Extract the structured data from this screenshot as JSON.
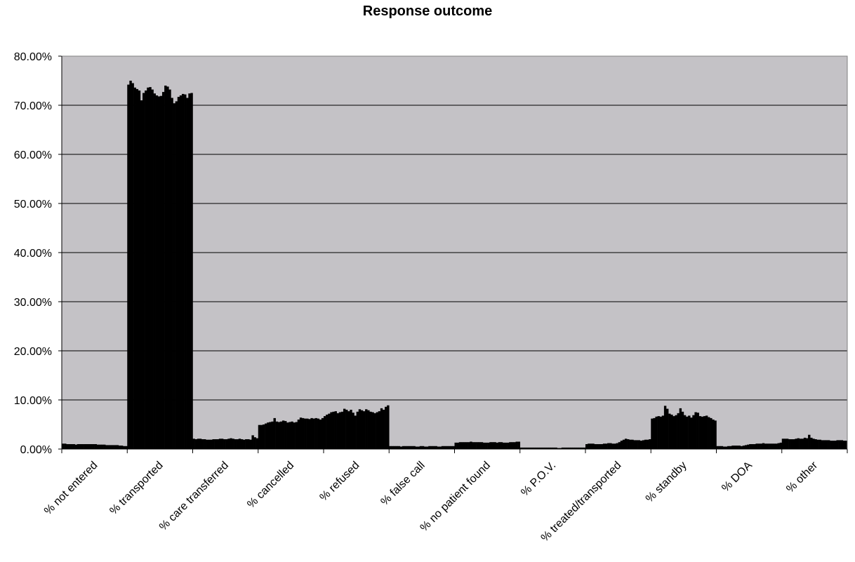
{
  "chart_data": {
    "type": "bar",
    "title": "Response outcome",
    "categories": [
      "% not entered",
      "% transported",
      "% care transferred",
      "% cancelled",
      "% refused",
      "% false call",
      "% no patient found",
      "% P.O.V.",
      "% treated/transported",
      "% standby",
      "% DOA",
      "% other"
    ],
    "values": [
      [
        1.1,
        1.1,
        1.0,
        1.0,
        1.0,
        1.0,
        0.9,
        1.0,
        1.0,
        1.0,
        1.0,
        1.0,
        1.0,
        1.0,
        1.0,
        1.0,
        0.9,
        0.9,
        0.9,
        0.9,
        0.8,
        0.8,
        0.8,
        0.8,
        0.8,
        0.8,
        0.7,
        0.7,
        0.6,
        0.6
      ],
      [
        74.2,
        75.0,
        74.5,
        73.6,
        73.3,
        73.0,
        71.0,
        72.5,
        73.0,
        73.6,
        73.7,
        73.2,
        72.4,
        72.0,
        71.8,
        71.9,
        72.7,
        74.0,
        73.8,
        73.2,
        71.5,
        70.4,
        70.8,
        71.7,
        72.0,
        72.3,
        72.2,
        71.5,
        72.4,
        72.5
      ],
      [
        2.1,
        2.0,
        2.1,
        2.1,
        2.0,
        2.0,
        1.9,
        1.9,
        1.9,
        2.0,
        2.0,
        2.0,
        2.1,
        2.1,
        2.0,
        2.0,
        2.1,
        2.2,
        2.1,
        2.0,
        2.0,
        2.1,
        2.0,
        1.9,
        2.0,
        2.0,
        1.9,
        2.8,
        2.4,
        2.2
      ],
      [
        4.9,
        4.9,
        5.0,
        5.2,
        5.4,
        5.5,
        5.6,
        6.3,
        5.6,
        5.5,
        5.6,
        5.8,
        5.7,
        5.4,
        5.5,
        5.6,
        5.4,
        5.5,
        6.0,
        6.4,
        6.3,
        6.2,
        6.2,
        6.1,
        6.3,
        6.2,
        6.3,
        6.2,
        6.0,
        6.3
      ],
      [
        6.7,
        7.0,
        7.2,
        7.5,
        7.6,
        7.7,
        7.3,
        7.5,
        7.6,
        8.2,
        8.0,
        7.7,
        8.0,
        7.4,
        6.8,
        7.6,
        8.1,
        7.9,
        7.7,
        8.1,
        7.9,
        7.6,
        7.5,
        7.3,
        7.5,
        7.7,
        8.3,
        8.0,
        8.6,
        8.9
      ],
      [
        0.6,
        0.6,
        0.6,
        0.6,
        0.6,
        0.5,
        0.6,
        0.6,
        0.6,
        0.6,
        0.6,
        0.6,
        0.5,
        0.5,
        0.6,
        0.6,
        0.5,
        0.5,
        0.6,
        0.6,
        0.6,
        0.6,
        0.5,
        0.5,
        0.6,
        0.6,
        0.6,
        0.6,
        0.6,
        0.6
      ],
      [
        1.3,
        1.3,
        1.4,
        1.4,
        1.4,
        1.4,
        1.4,
        1.5,
        1.4,
        1.4,
        1.4,
        1.4,
        1.4,
        1.3,
        1.3,
        1.3,
        1.4,
        1.4,
        1.4,
        1.3,
        1.4,
        1.4,
        1.3,
        1.3,
        1.3,
        1.4,
        1.4,
        1.4,
        1.5,
        1.5
      ],
      [
        0.3,
        0.3,
        0.3,
        0.3,
        0.3,
        0.3,
        0.3,
        0.3,
        0.3,
        0.3,
        0.3,
        0.3,
        0.3,
        0.3,
        0.3,
        0.3,
        0.3,
        0.2,
        0.2,
        0.3,
        0.3,
        0.3,
        0.3,
        0.3,
        0.3,
        0.3,
        0.3,
        0.3,
        0.3,
        0.3
      ],
      [
        1.0,
        1.1,
        1.1,
        1.1,
        1.0,
        1.0,
        1.0,
        1.0,
        1.1,
        1.1,
        1.2,
        1.2,
        1.1,
        1.1,
        1.2,
        1.4,
        1.7,
        1.9,
        2.1,
        2.0,
        1.9,
        1.9,
        1.8,
        1.8,
        1.8,
        1.7,
        1.8,
        1.9,
        1.9,
        2.0
      ],
      [
        6.2,
        6.3,
        6.6,
        6.7,
        6.6,
        6.8,
        8.8,
        8.2,
        7.2,
        7.0,
        6.7,
        6.9,
        7.3,
        8.3,
        7.6,
        6.9,
        6.6,
        6.8,
        6.4,
        6.9,
        7.5,
        7.4,
        6.7,
        6.6,
        6.7,
        6.8,
        6.5,
        6.3,
        6.0,
        5.8
      ],
      [
        0.6,
        0.6,
        0.6,
        0.5,
        0.5,
        0.6,
        0.6,
        0.7,
        0.7,
        0.7,
        0.7,
        0.6,
        0.7,
        0.8,
        0.9,
        1.0,
        1.0,
        1.0,
        1.1,
        1.1,
        1.1,
        1.2,
        1.1,
        1.1,
        1.1,
        1.1,
        1.1,
        1.1,
        1.2,
        1.3
      ],
      [
        2.1,
        2.1,
        2.1,
        2.0,
        2.0,
        2.0,
        2.1,
        2.2,
        2.1,
        2.1,
        2.3,
        2.2,
        2.9,
        2.3,
        2.1,
        2.0,
        1.9,
        1.9,
        1.8,
        1.8,
        1.8,
        1.8,
        1.7,
        1.7,
        1.7,
        1.8,
        1.8,
        1.8,
        1.7,
        1.7
      ]
    ],
    "color": "#000000",
    "background": "#c4c2c6",
    "ylim": [
      0,
      80
    ],
    "yticks": [
      {
        "value": 0,
        "label": "0.00%"
      },
      {
        "value": 10,
        "label": "10.00%"
      },
      {
        "value": 20,
        "label": "20.00%"
      },
      {
        "value": 30,
        "label": "30.00%"
      },
      {
        "value": 40,
        "label": "40.00%"
      },
      {
        "value": 50,
        "label": "50.00%"
      },
      {
        "value": 60,
        "label": "60.00%"
      },
      {
        "value": 70,
        "label": "70.00%"
      },
      {
        "value": 80,
        "label": "80.00%"
      }
    ],
    "grid": true
  }
}
